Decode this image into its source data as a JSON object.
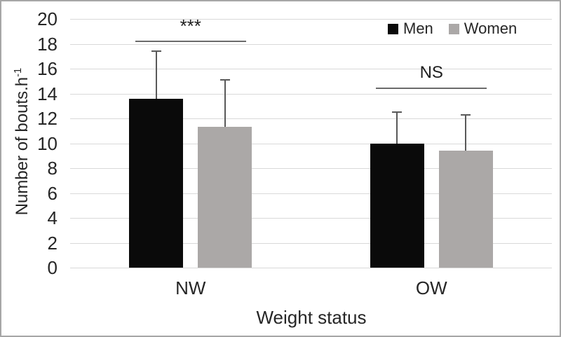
{
  "chart_data": {
    "type": "bar",
    "title": "",
    "categories": [
      "NW",
      "OW"
    ],
    "series": [
      {
        "name": "Men",
        "color": "#0a0a0a",
        "values": [
          13.6,
          10.0
        ],
        "errors_up": [
          3.8,
          2.5
        ]
      },
      {
        "name": "Women",
        "color": "#aba8a7",
        "values": [
          11.3,
          9.4
        ],
        "errors_up": [
          3.8,
          2.9
        ]
      }
    ],
    "annotations": [
      {
        "group": "NW",
        "text": "***",
        "line_y": 18.25
      },
      {
        "group": "OW",
        "text": "NS",
        "line_y": 14.5
      }
    ],
    "xlabel": "Weight status",
    "ylabel": "Number of bouts.h⁻¹",
    "ylabel_base": "Number of bouts.h",
    "ylabel_sup": "-1",
    "ylim": [
      0,
      20
    ],
    "ytick_step": 2,
    "yticks": [
      0,
      2,
      4,
      6,
      8,
      10,
      12,
      14,
      16,
      18,
      20
    ],
    "legend_position": "top-right",
    "grid": true,
    "colors": {
      "gridline": "#d9d9d9",
      "error_bar": "#595959",
      "sig_line": "#6b6b6b",
      "frame_border": "#a6a6a6",
      "text": "#262626"
    }
  }
}
